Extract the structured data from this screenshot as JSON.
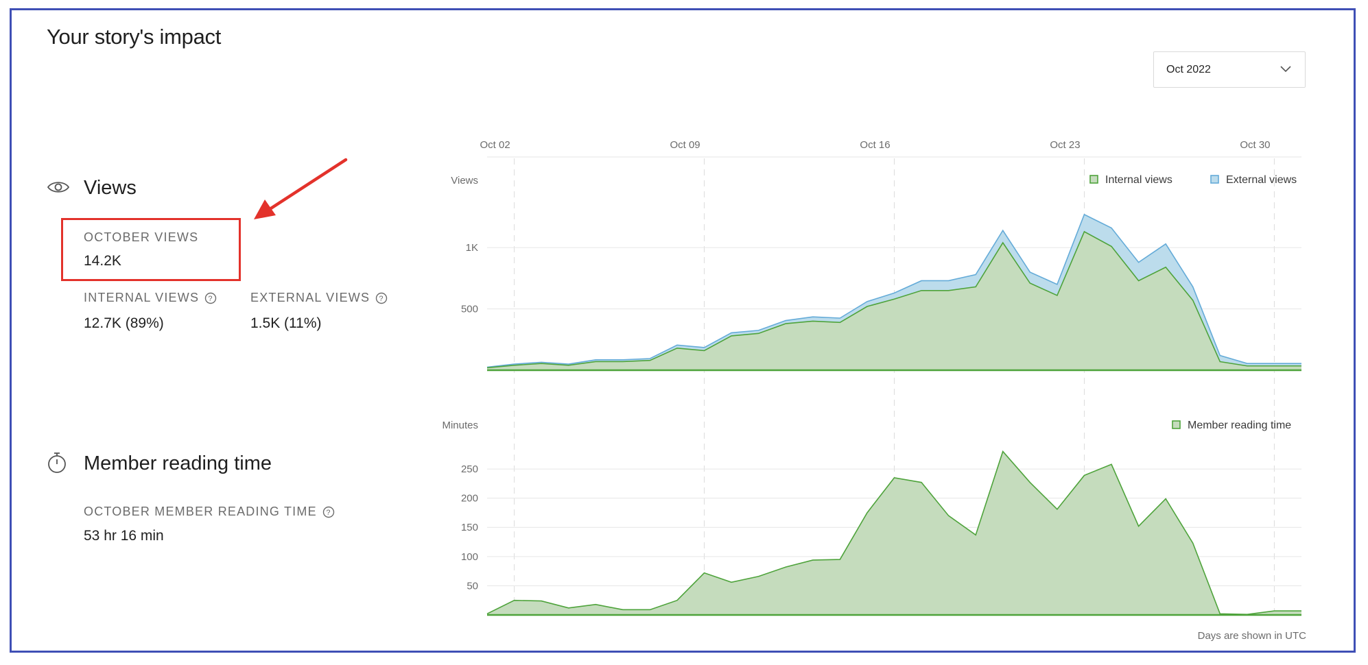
{
  "page": {
    "title": "Your story's impact"
  },
  "month_selector": {
    "value": "Oct 2022",
    "icon": "chevron-down-icon"
  },
  "views_section": {
    "title": "Views",
    "icon": "eye-icon",
    "total": {
      "label": "OCTOBER VIEWS",
      "value": "14.2K"
    },
    "internal": {
      "label": "INTERNAL VIEWS",
      "value": "12.7K (89%)"
    },
    "external": {
      "label": "EXTERNAL VIEWS",
      "value": "1.5K (11%)"
    }
  },
  "reading_section": {
    "title": "Member reading time",
    "icon": "stopwatch-icon",
    "total": {
      "label": "OCTOBER MEMBER READING TIME",
      "value": "53 hr 16 min"
    }
  },
  "footnote": "Days are shown in UTC",
  "colors": {
    "internal_fill": "#c5dcbd",
    "internal_line": "#4ea33b",
    "external_fill": "#bcdcec",
    "external_line": "#64abd8",
    "annotation": "#e3322b"
  },
  "chart_data": [
    {
      "type": "area",
      "title": "Views",
      "ylabel": "Views",
      "x_ticks": [
        "Oct 02",
        "Oct 09",
        "Oct 16",
        "Oct 23",
        "Oct 30"
      ],
      "x_tick_days": [
        2,
        9,
        16,
        23,
        30
      ],
      "x": [
        1,
        2,
        3,
        4,
        5,
        6,
        7,
        8,
        9,
        10,
        11,
        12,
        13,
        14,
        15,
        16,
        17,
        18,
        19,
        20,
        21,
        22,
        23,
        24,
        25,
        26,
        27,
        28,
        29,
        30,
        31
      ],
      "y_ticks": [
        {
          "value": 1000,
          "label": "1K"
        },
        {
          "value": 500,
          "label": "500"
        }
      ],
      "ylim": [
        0,
        1700
      ],
      "legend": [
        "Internal views",
        "External views"
      ],
      "legend_position": "top-right",
      "series": [
        {
          "name": "Internal views",
          "values": [
            20,
            40,
            55,
            40,
            70,
            70,
            80,
            180,
            160,
            280,
            300,
            380,
            400,
            390,
            520,
            580,
            650,
            650,
            680,
            1040,
            710,
            610,
            1130,
            1010,
            730,
            840,
            570,
            70,
            35,
            35,
            35
          ]
        },
        {
          "name": "External views",
          "values": [
            5,
            10,
            10,
            10,
            15,
            15,
            15,
            25,
            25,
            25,
            25,
            25,
            35,
            35,
            40,
            50,
            80,
            80,
            100,
            100,
            90,
            90,
            140,
            150,
            150,
            190,
            110,
            50,
            20,
            20,
            20
          ]
        }
      ]
    },
    {
      "type": "area",
      "title": "Member reading time",
      "ylabel": "Minutes",
      "x": [
        1,
        2,
        3,
        4,
        5,
        6,
        7,
        8,
        9,
        10,
        11,
        12,
        13,
        14,
        15,
        16,
        17,
        18,
        19,
        20,
        21,
        22,
        23,
        24,
        25,
        26,
        27,
        28,
        29,
        30,
        31
      ],
      "y_ticks": [
        250,
        200,
        150,
        100,
        50
      ],
      "ylim": [
        0,
        290
      ],
      "legend": [
        "Member reading time"
      ],
      "legend_position": "top-right",
      "series": [
        {
          "name": "Member reading time",
          "values": [
            2,
            25,
            24,
            12,
            18,
            9,
            9,
            25,
            72,
            56,
            66,
            82,
            94,
            95,
            175,
            235,
            227,
            170,
            137,
            280,
            227,
            181,
            239,
            258,
            152,
            199,
            123,
            2,
            1,
            7,
            7
          ]
        }
      ]
    }
  ]
}
